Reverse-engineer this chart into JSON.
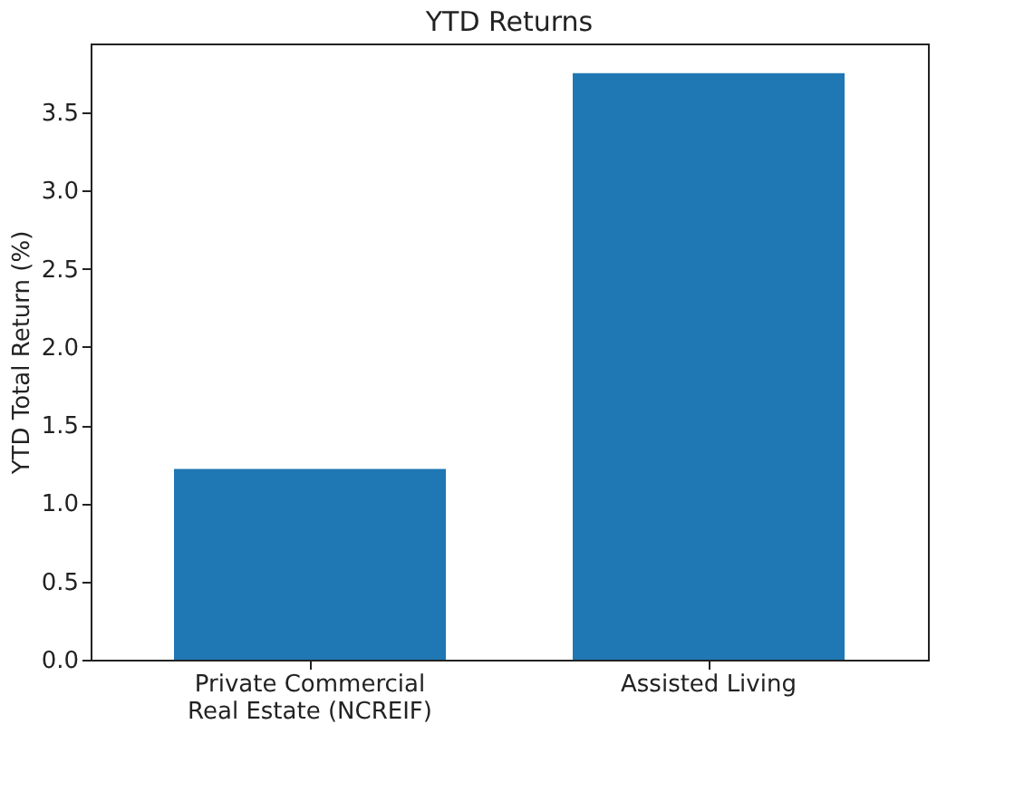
{
  "chart_data": {
    "type": "bar",
    "title": "YTD Returns",
    "ylabel": "YTD Total Return (%)",
    "categories": [
      "Private Commercial\nReal Estate (NCREIF)",
      "Assisted Living"
    ],
    "values": [
      1.22,
      3.75
    ],
    "color": "#1f77b4",
    "ylim": [
      0,
      3.94
    ],
    "yticks": [
      {
        "value": 0,
        "label": "0.0"
      },
      0.5,
      {
        "value": 1,
        "label": "1.0"
      },
      1.5,
      {
        "value": 2,
        "label": "2.0"
      },
      2.5,
      {
        "value": 3,
        "label": "3.0"
      },
      3.5
    ],
    "grid": false
  }
}
